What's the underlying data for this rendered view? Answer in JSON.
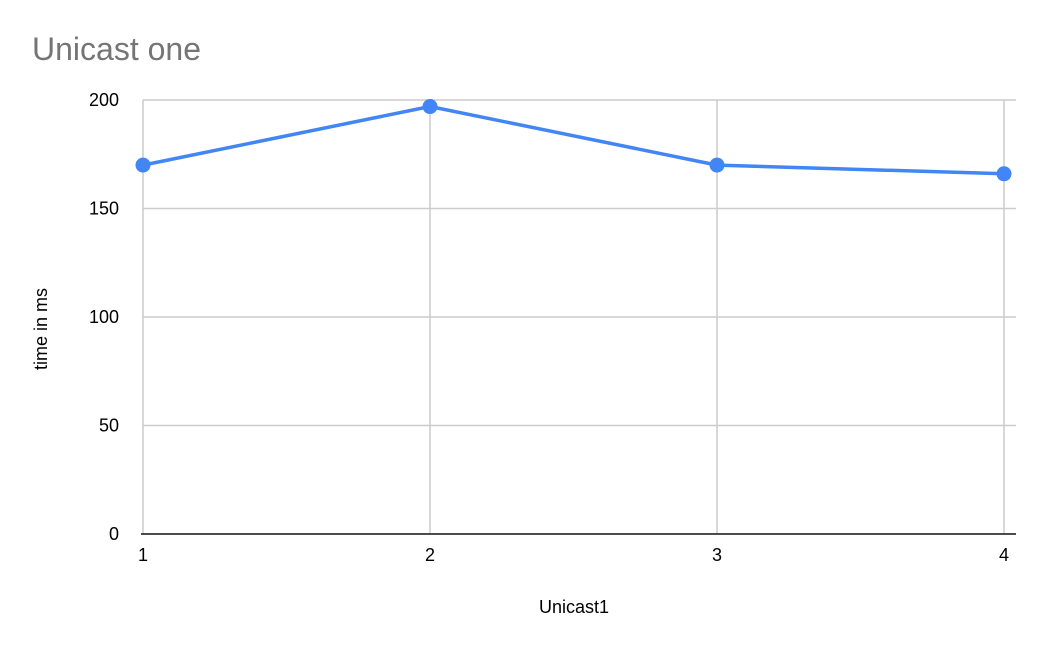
{
  "colors": {
    "series": "#4285f4",
    "grid": "#cccccc",
    "axis": "#333333",
    "title": "#757575",
    "text": "#000000"
  },
  "chart_data": {
    "type": "line",
    "title": "Unicast one",
    "xlabel": "Unicast1",
    "ylabel": "time in ms",
    "x": [
      1,
      2,
      3,
      4
    ],
    "x_tick_labels": [
      "1",
      "2",
      "3",
      "4"
    ],
    "y_tick_labels": [
      "0",
      "50",
      "100",
      "150",
      "200"
    ],
    "y_ticks": [
      0,
      50,
      100,
      150,
      200
    ],
    "ylim": [
      0,
      200
    ],
    "xlim": [
      1,
      4
    ],
    "grid": true,
    "series": [
      {
        "values": [
          170,
          197,
          170,
          166
        ]
      }
    ]
  }
}
